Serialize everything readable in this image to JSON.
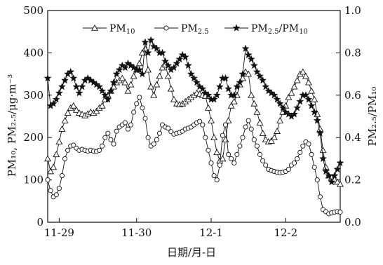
{
  "chart_data": {
    "type": "line",
    "xlabel": "日期/月-日",
    "ylabel_left": "PM₁₀, PM₂.₅/μg·m⁻³",
    "ylabel_right": "PM₂.₅/PM₁₀",
    "ylim_left": [
      0,
      500
    ],
    "ylim_right": [
      0.0,
      1.0
    ],
    "yticks_left": [
      "0",
      "100",
      "200",
      "300",
      "400",
      "500"
    ],
    "yticks_right": [
      "0.0",
      "0.2",
      "0.4",
      "0.6",
      "0.8",
      "1.0"
    ],
    "x_range": [
      0,
      102
    ],
    "x_ticks": [
      {
        "x": 4,
        "label": "11-29"
      },
      {
        "x": 31,
        "label": "11-30"
      },
      {
        "x": 57,
        "label": "12-1"
      },
      {
        "x": 83,
        "label": "12-2"
      }
    ],
    "legend": {
      "position": "top",
      "entries": [
        "PM10",
        "PM2.5",
        "PM2.5/PM10"
      ]
    },
    "grid": false,
    "series": [
      {
        "name": "PM10",
        "axis": "left",
        "marker": "triangle",
        "values": [
          150,
          120,
          130,
          160,
          190,
          220,
          240,
          258,
          270,
          275,
          265,
          258,
          255,
          252,
          256,
          260,
          258,
          262,
          270,
          275,
          290,
          300,
          310,
          320,
          330,
          335,
          340,
          330,
          310,
          325,
          345,
          360,
          375,
          400,
          410,
          360,
          320,
          300,
          325,
          345,
          365,
          372,
          345,
          315,
          290,
          280,
          278,
          280,
          285,
          290,
          295,
          300,
          305,
          303,
          300,
          298,
          270,
          240,
          200,
          165,
          145,
          150,
          195,
          240,
          275,
          285,
          300,
          325,
          340,
          355,
          350,
          300,
          280,
          260,
          235,
          210,
          195,
          190,
          192,
          200,
          215,
          240,
          260,
          275,
          295,
          305,
          320,
          335,
          350,
          355,
          345,
          330,
          310,
          290,
          255,
          220,
          170,
          130,
          110,
          105,
          100,
          95,
          90
        ]
      },
      {
        "name": "PM2.5",
        "axis": "left",
        "marker": "circle",
        "values": [
          100,
          75,
          60,
          65,
          80,
          110,
          150,
          170,
          180,
          182,
          175,
          170,
          172,
          170,
          168,
          170,
          168,
          167,
          170,
          180,
          200,
          210,
          195,
          185,
          215,
          225,
          230,
          235,
          220,
          230,
          260,
          280,
          295,
          270,
          245,
          200,
          180,
          185,
          195,
          210,
          230,
          225,
          222,
          214,
          208,
          210,
          212,
          215,
          220,
          222,
          225,
          230,
          235,
          238,
          230,
          200,
          170,
          140,
          110,
          100,
          135,
          205,
          230,
          160,
          150,
          140,
          160,
          180,
          200,
          225,
          240,
          220,
          195,
          180,
          160,
          145,
          135,
          125,
          122,
          120,
          118,
          117,
          118,
          120,
          125,
          135,
          140,
          150,
          165,
          180,
          190,
          185,
          160,
          130,
          100,
          60,
          30,
          25,
          20,
          22,
          24,
          25,
          24
        ]
      },
      {
        "name": "PM2.5/PM10",
        "axis": "right",
        "marker": "star",
        "values": [
          0.68,
          0.55,
          0.56,
          0.58,
          0.61,
          0.64,
          0.67,
          0.7,
          0.71,
          0.68,
          0.64,
          0.61,
          0.64,
          0.67,
          0.68,
          0.67,
          0.66,
          0.65,
          0.64,
          0.62,
          0.6,
          0.58,
          0.62,
          0.66,
          0.7,
          0.72,
          0.74,
          0.73,
          0.75,
          0.74,
          0.73,
          0.72,
          0.72,
          0.7,
          0.85,
          0.8,
          0.86,
          0.83,
          0.82,
          0.8,
          0.8,
          0.76,
          0.74,
          0.72,
          0.73,
          0.75,
          0.77,
          0.79,
          0.78,
          0.74,
          0.7,
          0.68,
          0.66,
          0.64,
          0.63,
          0.61,
          0.6,
          0.58,
          0.58,
          0.6,
          0.64,
          0.68,
          0.68,
          0.63,
          0.6,
          0.6,
          0.64,
          0.66,
          0.7,
          0.82,
          0.79,
          0.77,
          0.74,
          0.71,
          0.69,
          0.67,
          0.64,
          0.62,
          0.61,
          0.6,
          0.58,
          0.56,
          0.54,
          0.52,
          0.51,
          0.5,
          0.51,
          0.54,
          0.57,
          0.6,
          0.6,
          0.58,
          0.55,
          0.52,
          0.48,
          0.42,
          0.3,
          0.24,
          0.22,
          0.19,
          0.22,
          0.25,
          0.28
        ]
      }
    ]
  }
}
